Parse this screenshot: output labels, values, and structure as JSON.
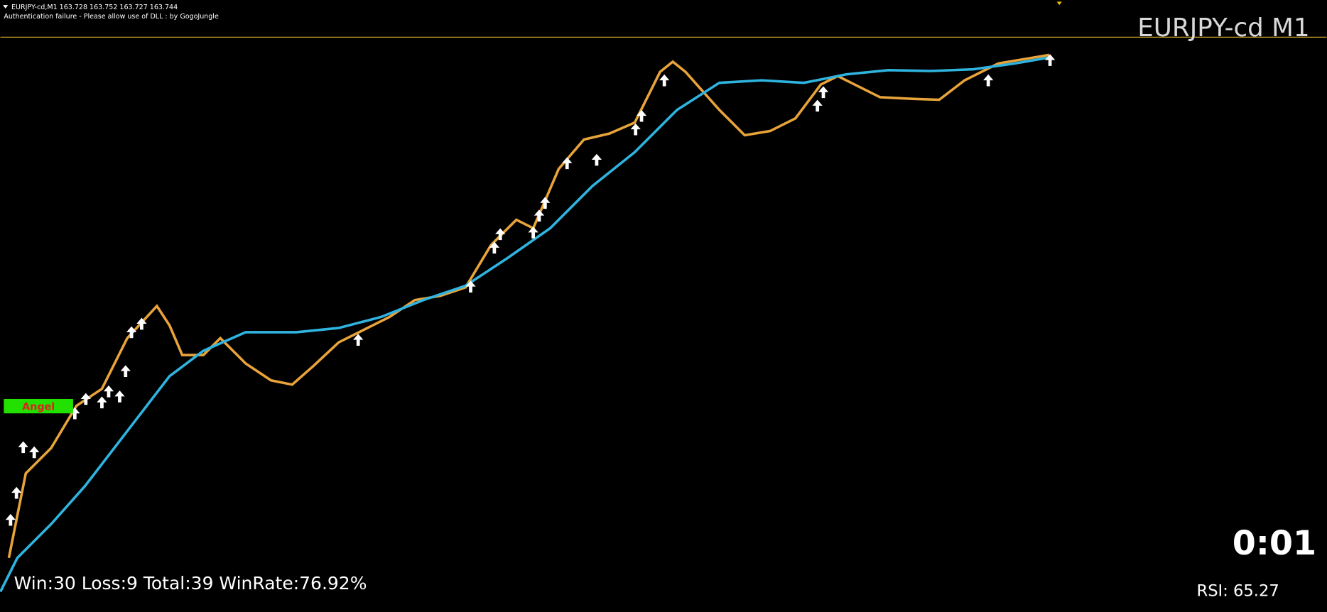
{
  "header": {
    "symbol_line": "EURJPY-cd,M1  163.728 163.752 163.727 163.744",
    "auth_message": "Authentication failure - Please allow use of DLL : by GogoJungle"
  },
  "chart_label": "EURJPY-cd M1",
  "badge": "Angel",
  "stats": "Win:30 Loss:9 Total:39 WinRate:76.92%",
  "timer": "0:01",
  "rsi": "RSI: 65.27"
}
